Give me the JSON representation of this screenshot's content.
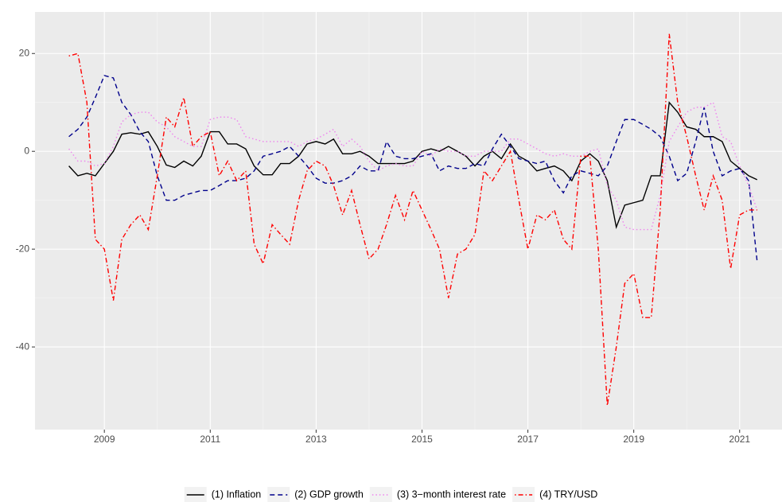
{
  "chart_data": {
    "type": "line",
    "x": [
      2008.33,
      2008.5,
      2008.67,
      2008.83,
      2009.0,
      2009.17,
      2009.33,
      2009.5,
      2009.67,
      2009.83,
      2010.0,
      2010.17,
      2010.33,
      2010.5,
      2010.67,
      2010.83,
      2011.0,
      2011.17,
      2011.33,
      2011.5,
      2011.67,
      2011.83,
      2012.0,
      2012.17,
      2012.33,
      2012.5,
      2012.67,
      2012.83,
      2013.0,
      2013.17,
      2013.33,
      2013.5,
      2013.67,
      2013.83,
      2014.0,
      2014.17,
      2014.33,
      2014.5,
      2014.67,
      2014.83,
      2015.0,
      2015.17,
      2015.33,
      2015.5,
      2015.67,
      2015.83,
      2016.0,
      2016.17,
      2016.33,
      2016.5,
      2016.67,
      2016.83,
      2017.0,
      2017.17,
      2017.33,
      2017.5,
      2017.67,
      2017.83,
      2018.0,
      2018.17,
      2018.33,
      2018.5,
      2018.67,
      2018.83,
      2019.0,
      2019.17,
      2019.33,
      2019.5,
      2019.67,
      2019.83,
      2020.0,
      2020.17,
      2020.33,
      2020.5,
      2020.67,
      2020.83,
      2021.0,
      2021.17,
      2021.33
    ],
    "series": [
      {
        "name": "(1) Inflation",
        "color": "#000000",
        "linetype": "solid",
        "values": [
          -3,
          -5,
          -4.5,
          -5,
          -2.5,
          0,
          3.5,
          3.8,
          3.5,
          4,
          1,
          -2.8,
          -3.3,
          -2,
          -3,
          -1,
          4,
          4,
          1.5,
          1.5,
          0.5,
          -3,
          -4.8,
          -4.8,
          -2.5,
          -2.5,
          -1,
          1.5,
          2,
          1.5,
          2.5,
          -0.5,
          -0.5,
          0,
          -1,
          -2.5,
          -2.5,
          -2.5,
          -2.5,
          -2,
          0,
          0.5,
          0,
          1,
          0,
          -1,
          -3,
          -1,
          0,
          -1.5,
          1.5,
          -1,
          -2,
          -4,
          -3.5,
          -3,
          -4,
          -6,
          -2,
          -0.5,
          -2,
          -6,
          -15.5,
          -11,
          -10.5,
          -10,
          -5,
          -5,
          10,
          8,
          5,
          4.5,
          3,
          3,
          2,
          -2,
          -3.5,
          -5,
          -5.8
        ]
      },
      {
        "name": "(2) GDP growth",
        "color": "#00008b",
        "linetype": "dashed",
        "values": [
          3,
          4.5,
          7,
          11,
          15.5,
          15,
          10,
          7.5,
          4,
          2,
          -5,
          -10,
          -10,
          -9,
          -8.5,
          -8,
          -8,
          -7,
          -6,
          -6,
          -5.5,
          -4,
          -1,
          -0.5,
          0,
          1,
          -1,
          -3,
          -5.5,
          -6.5,
          -6.5,
          -6,
          -5,
          -3,
          -4,
          -4,
          2,
          -1,
          -1.5,
          -1.5,
          -1,
          -0.5,
          -4,
          -3,
          -3.5,
          -3.5,
          -2.5,
          -3,
          0.5,
          3.5,
          1,
          -1.5,
          -2,
          -2.5,
          -2,
          -6,
          -8.5,
          -5,
          -4,
          -4.5,
          -5,
          -3,
          2,
          6.5,
          6.5,
          5.5,
          4.5,
          3,
          -1,
          -6,
          -4.5,
          2,
          9,
          0,
          -5,
          -4,
          -3.5,
          -6,
          -22.5
        ]
      },
      {
        "name": "(3) 3−month interest rate",
        "color": "#ee82ee",
        "linetype": "dotted",
        "values": [
          0.5,
          -2,
          -2,
          -3,
          -2.5,
          1,
          6,
          7.5,
          8,
          8,
          6,
          5,
          3,
          2,
          1,
          1,
          6.5,
          7,
          7,
          6.5,
          3,
          2.5,
          2,
          2,
          2,
          2,
          1,
          2,
          2.5,
          3.5,
          4.5,
          1,
          2.5,
          1,
          -2,
          -4,
          -3,
          -2.5,
          -3,
          -3,
          0,
          -1,
          0.5,
          0,
          0,
          -1,
          -1,
          0,
          0,
          0,
          2.5,
          2.5,
          1.5,
          0.5,
          -0.5,
          -1,
          -0.5,
          -1,
          -1,
          0,
          0.5,
          -7,
          -10,
          -15.5,
          -16,
          -16,
          -16,
          -9,
          2,
          5,
          8,
          9,
          9,
          10,
          3,
          2,
          -3,
          -7,
          -12
        ]
      },
      {
        "name": "(4) TRY/USD",
        "color": "#ff0000",
        "linetype": "dotdash",
        "values": [
          19.5,
          20,
          10,
          -18,
          -20,
          -30.5,
          -18,
          -15,
          -13,
          -16,
          -5,
          7,
          5,
          11,
          1,
          3,
          4,
          -5,
          -2,
          -6,
          -4,
          -19,
          -23,
          -15,
          -17,
          -19,
          -10,
          -4,
          -2,
          -3,
          -7,
          -13,
          -8,
          -15,
          -22,
          -20,
          -15,
          -9,
          -14,
          -8,
          -12,
          -16,
          -20,
          -30,
          -21,
          -20,
          -17,
          -4,
          -6,
          -3,
          0,
          -10,
          -20,
          -13,
          -14,
          -12,
          -18,
          -20,
          -1,
          -1,
          -20,
          -52,
          -40,
          -27,
          -25,
          -34,
          -34,
          -12,
          24,
          10,
          3,
          -5,
          -12,
          -5,
          -10,
          -24,
          -13,
          -12,
          -12
        ]
      }
    ],
    "xlim": [
      2007.69,
      2021.8
    ],
    "xticks": [
      2009,
      2011,
      2013,
      2015,
      2017,
      2019,
      2021
    ],
    "ylim": [
      -56.9,
      28.5
    ],
    "yticks": [
      -40,
      -20,
      0,
      20
    ],
    "grid": true,
    "legend": "bottom"
  }
}
